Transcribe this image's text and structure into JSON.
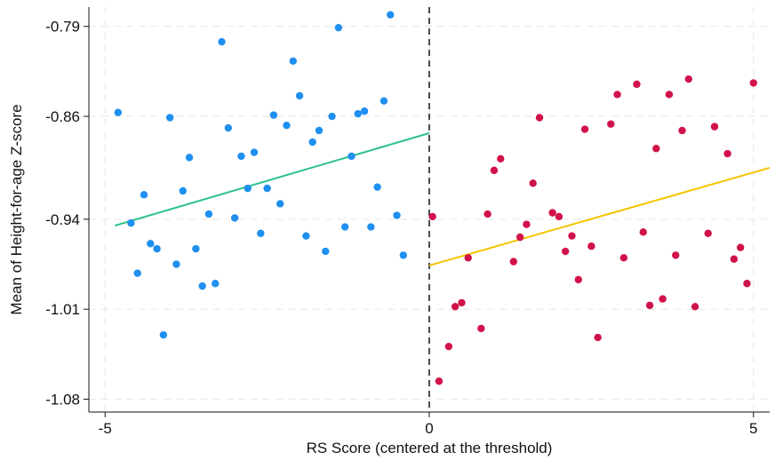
{
  "chart_data": {
    "type": "scatter",
    "title": "",
    "xlabel": "RS Score (centered at the threshold)",
    "ylabel": "Mean of Height-for-age Z-score",
    "xlim": [
      -5.25,
      5.25
    ],
    "ylim": [
      -1.09,
      -0.775
    ],
    "xticks": [
      -5,
      0,
      5
    ],
    "xtick_labels": [
      "-5",
      "0",
      "5"
    ],
    "yticks": [
      -0.79,
      -0.86,
      -0.94,
      -1.01,
      -1.08
    ],
    "ytick_labels": [
      "-0.79",
      "-0.86",
      "-0.94",
      "-1.01",
      "-1.08"
    ],
    "grid": true,
    "cutoff_line": {
      "x": 0,
      "style": "dashed",
      "color": "#111111"
    },
    "series": [
      {
        "color": "#1f8ff0",
        "points": [
          [
            -4.8,
            -0.857
          ],
          [
            -4.6,
            -0.943
          ],
          [
            -4.5,
            -0.982
          ],
          [
            -4.4,
            -0.921
          ],
          [
            -4.3,
            -0.959
          ],
          [
            -4.2,
            -0.963
          ],
          [
            -4.1,
            -1.03
          ],
          [
            -4.0,
            -0.861
          ],
          [
            -3.9,
            -0.975
          ],
          [
            -3.8,
            -0.918
          ],
          [
            -3.7,
            -0.892
          ],
          [
            -3.6,
            -0.963
          ],
          [
            -3.5,
            -0.992
          ],
          [
            -3.4,
            -0.936
          ],
          [
            -3.3,
            -0.99
          ],
          [
            -3.2,
            -0.802
          ],
          [
            -3.1,
            -0.869
          ],
          [
            -3.0,
            -0.939
          ],
          [
            -2.9,
            -0.891
          ],
          [
            -2.8,
            -0.916
          ],
          [
            -2.7,
            -0.888
          ],
          [
            -2.6,
            -0.951
          ],
          [
            -2.5,
            -0.916
          ],
          [
            -2.4,
            -0.859
          ],
          [
            -2.3,
            -0.928
          ],
          [
            -2.2,
            -0.867
          ],
          [
            -2.1,
            -0.817
          ],
          [
            -2.0,
            -0.844
          ],
          [
            -1.9,
            -0.953
          ],
          [
            -1.8,
            -0.88
          ],
          [
            -1.7,
            -0.871
          ],
          [
            -1.6,
            -0.965
          ],
          [
            -1.5,
            -0.86
          ],
          [
            -1.4,
            -0.791
          ],
          [
            -1.3,
            -0.946
          ],
          [
            -1.2,
            -0.891
          ],
          [
            -1.1,
            -0.858
          ],
          [
            -1.0,
            -0.856
          ],
          [
            -0.9,
            -0.946
          ],
          [
            -0.8,
            -0.915
          ],
          [
            -0.7,
            -0.848
          ],
          [
            -0.6,
            -0.781
          ],
          [
            -0.5,
            -0.937
          ],
          [
            -0.4,
            -0.968
          ]
        ]
      },
      {
        "color": "#d1124a",
        "points": [
          [
            0.05,
            -0.938
          ],
          [
            0.15,
            -1.066
          ],
          [
            0.3,
            -1.039
          ],
          [
            0.4,
            -1.008
          ],
          [
            0.5,
            -1.005
          ],
          [
            0.6,
            -0.97
          ],
          [
            0.8,
            -1.025
          ],
          [
            0.9,
            -0.936
          ],
          [
            1.0,
            -0.902
          ],
          [
            1.1,
            -0.893
          ],
          [
            1.3,
            -0.973
          ],
          [
            1.4,
            -0.954
          ],
          [
            1.5,
            -0.944
          ],
          [
            1.6,
            -0.912
          ],
          [
            1.7,
            -0.861
          ],
          [
            1.9,
            -0.935
          ],
          [
            2.0,
            -0.938
          ],
          [
            2.1,
            -0.965
          ],
          [
            2.2,
            -0.953
          ],
          [
            2.3,
            -0.987
          ],
          [
            2.4,
            -0.87
          ],
          [
            2.5,
            -0.961
          ],
          [
            2.6,
            -1.032
          ],
          [
            2.8,
            -0.866
          ],
          [
            2.9,
            -0.843
          ],
          [
            3.0,
            -0.97
          ],
          [
            3.2,
            -0.835
          ],
          [
            3.3,
            -0.95
          ],
          [
            3.4,
            -1.007
          ],
          [
            3.5,
            -0.885
          ],
          [
            3.6,
            -1.002
          ],
          [
            3.7,
            -0.843
          ],
          [
            3.8,
            -0.968
          ],
          [
            3.9,
            -0.871
          ],
          [
            4.0,
            -0.831
          ],
          [
            4.1,
            -1.008
          ],
          [
            4.3,
            -0.951
          ],
          [
            4.4,
            -0.868
          ],
          [
            4.6,
            -0.889
          ],
          [
            4.7,
            -0.971
          ],
          [
            4.8,
            -0.962
          ],
          [
            4.9,
            -0.99
          ],
          [
            5.0,
            -0.834
          ]
        ]
      }
    ],
    "fits": [
      {
        "color": "#2ec28a",
        "x": [
          -4.85,
          0
        ],
        "y": [
          -0.945,
          -0.873
        ]
      },
      {
        "color": "#f5c400",
        "x": [
          0,
          5.25
        ],
        "y": [
          -0.976,
          -0.9
        ]
      }
    ]
  }
}
